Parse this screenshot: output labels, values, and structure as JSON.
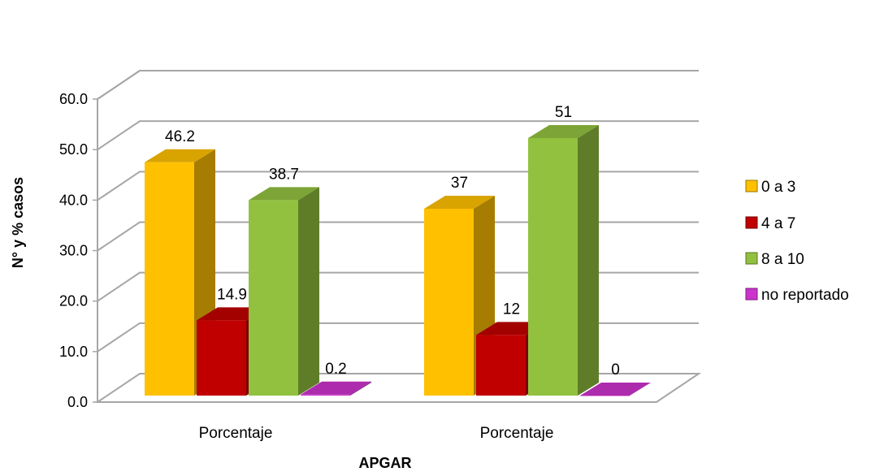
{
  "chart_data": {
    "type": "bar",
    "title": "",
    "xlabel": "APGAR",
    "ylabel": "N° y % casos",
    "ylim": [
      0,
      60
    ],
    "yticks": [
      "0.0",
      "10.0",
      "20.0",
      "30.0",
      "40.0",
      "50.0",
      "60.0"
    ],
    "categories": [
      "Porcentaje",
      "Porcentaje"
    ],
    "grid": true,
    "legend": "right",
    "series": [
      {
        "name": "0 a 3",
        "values": [
          46.2,
          37
        ],
        "labels": [
          "46.2",
          "37"
        ],
        "color": "#FFC000"
      },
      {
        "name": "4 a 7",
        "values": [
          14.9,
          12
        ],
        "labels": [
          "14.9",
          "12"
        ],
        "color": "#C00000"
      },
      {
        "name": "8 a 10",
        "values": [
          38.7,
          51
        ],
        "labels": [
          "38.7",
          "51"
        ],
        "color": "#92C13F"
      },
      {
        "name": "no reportado",
        "values": [
          0.2,
          0
        ],
        "labels": [
          "0.2",
          "0"
        ],
        "color": "#CC33CC"
      }
    ]
  }
}
